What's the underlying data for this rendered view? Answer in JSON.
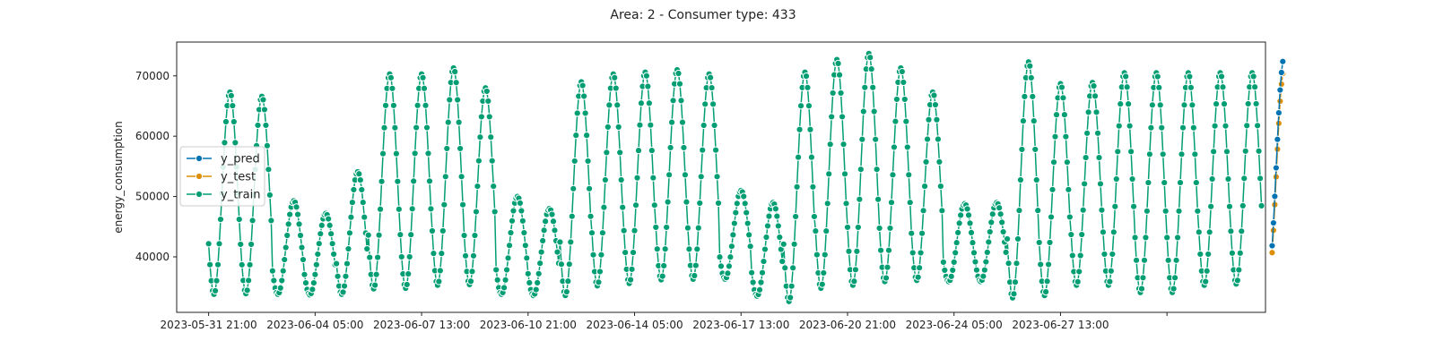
{
  "chart_data": {
    "type": "line",
    "title": "Area: 2 - Consumer type: 433",
    "xlabel": "",
    "ylabel": "energy_consumption",
    "xlim": [
      "2023-05-30 21:00",
      "2023-07-03 23:00"
    ],
    "ylim": [
      30800,
      75600
    ],
    "yticks": [
      40000,
      50000,
      60000,
      70000
    ],
    "yticklabels": [
      "40000",
      "50000",
      "60000",
      "70000"
    ],
    "xticks": [
      "2023-05-31 21:00",
      "2023-06-04 05:00",
      "2023-06-07 13:00",
      "2023-06-10 21:00",
      "2023-06-14 05:00",
      "2023-06-17 13:00",
      "2023-06-20 21:00",
      "2023-06-24 05:00",
      "2023-06-27 13:00",
      "2023-06-30 21:00"
    ],
    "xticklabels": [
      "2023-05-31 21:00",
      "2023-06-04 05:00",
      "2023-06-07 13:00",
      "2023-06-10 21:00",
      "2023-06-14 05:00",
      "2023-06-17 13:00",
      "2023-06-20 21:00",
      "2023-06-24 05:00",
      "2023-06-27 13:00",
      ""
    ],
    "legend": "center-left",
    "grid": false,
    "hourly_series_start": "2023-05-31 21:00",
    "series": [
      {
        "name": "y_pred",
        "color": "#0173b2",
        "start_index": 799,
        "daily_amplitude": [
          36500,
          37500
        ],
        "daily_peak": [
          73000,
          68500
        ]
      },
      {
        "name": "y_test",
        "color": "#de8f05",
        "start_index": 799,
        "daily_amplitude": [
          35500,
          36500
        ],
        "daily_peak": [
          71000,
          65000
        ]
      },
      {
        "name": "y_train",
        "color": "#029e73",
        "start_index": 0,
        "daily_minima": [
          33800,
          33900,
          33800,
          33700,
          33800,
          34700,
          34800,
          35300,
          35400,
          33800,
          33600,
          33600,
          35200,
          35600,
          36200,
          36300,
          36300,
          33500,
          32600,
          34800,
          35300,
          35900,
          36100,
          35900,
          35900,
          33200,
          33600,
          35300,
          35300,
          34100,
          34100,
          35300,
          35500
        ],
        "daily_maxima": [
          67300,
          66600,
          49300,
          47200,
          54100,
          70300,
          70300,
          71300,
          68000,
          50000,
          48000,
          69000,
          70300,
          70600,
          71000,
          70300,
          51000,
          49000,
          70600,
          72700,
          73700,
          71300,
          67300,
          48800,
          49000,
          72300,
          68700,
          68900,
          70500,
          70500,
          70500,
          70500,
          70500
        ]
      }
    ]
  }
}
